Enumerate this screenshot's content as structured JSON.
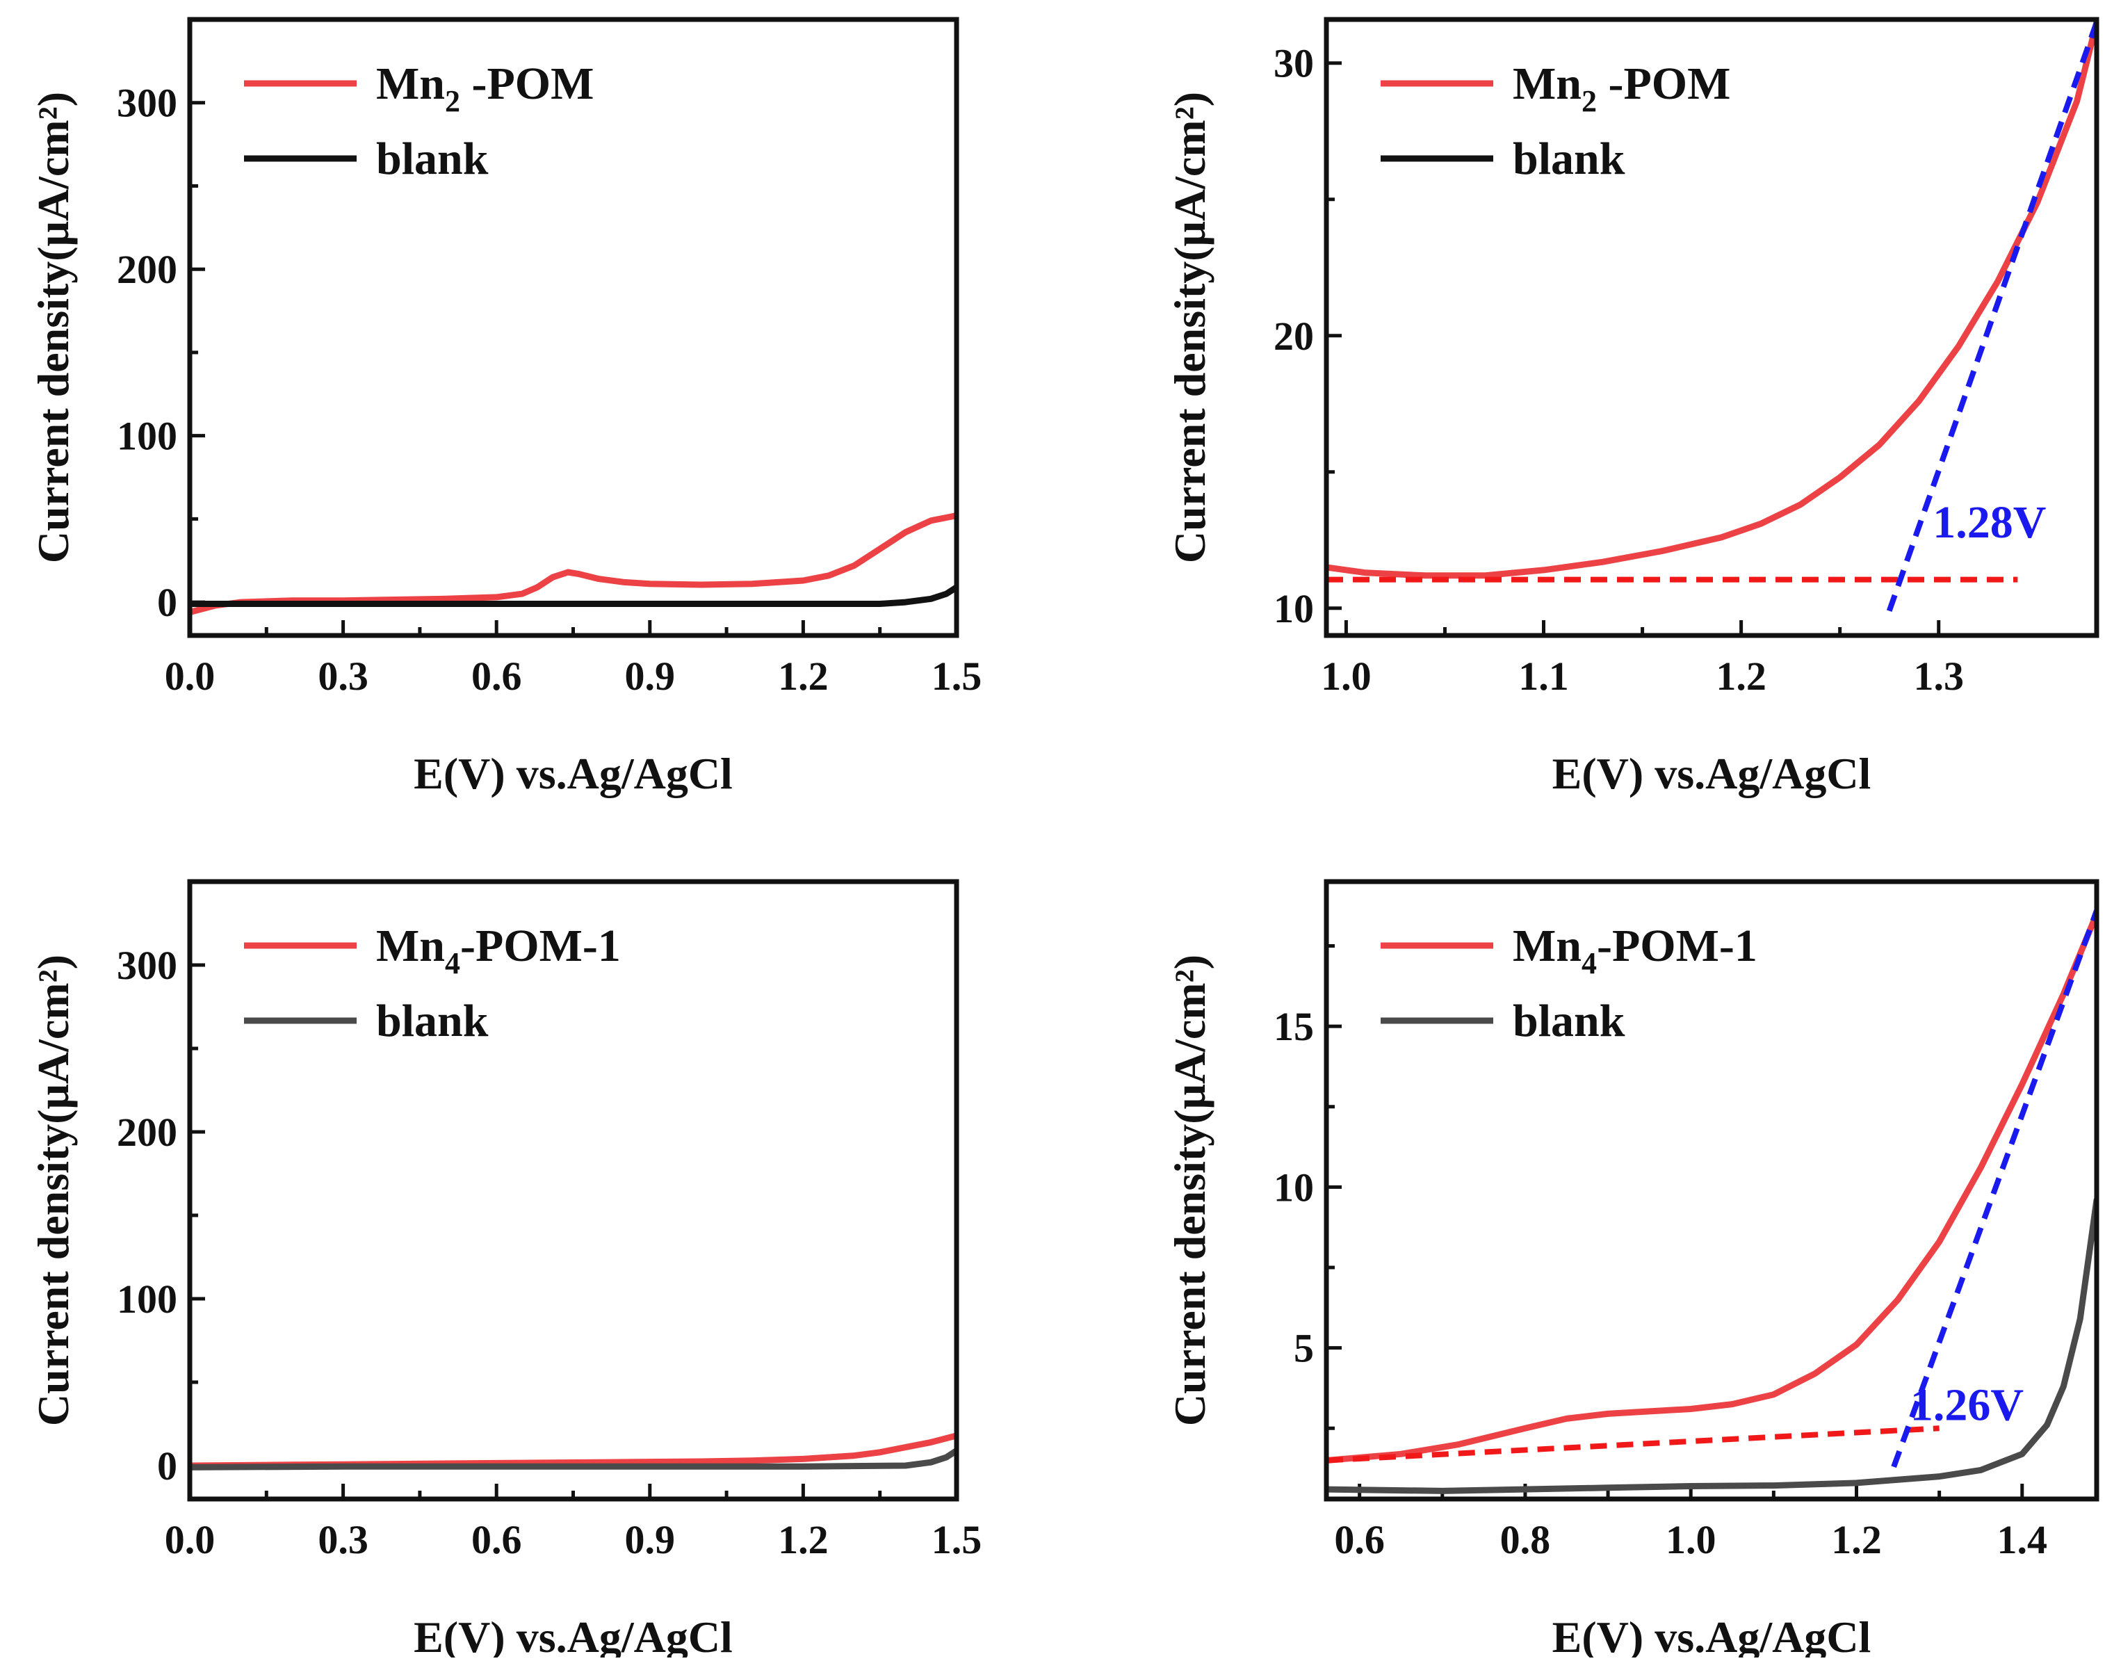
{
  "colors": {
    "red": "#ed4245",
    "black": "#111111",
    "gray": "#4a4a4a",
    "dash_red": "#f01818",
    "dash_blue": "#1a1aee"
  },
  "chart_data": [
    {
      "id": "a",
      "type": "line",
      "xlabel": "E(V) vs.Ag/AgCl",
      "ylabel": "Current density(μA/cm²)",
      "xlim": [
        0.0,
        1.5
      ],
      "ylim": [
        -20,
        350
      ],
      "xticks": [
        0.0,
        0.3,
        0.6,
        0.9,
        1.2,
        1.5
      ],
      "xtick_labels": [
        "0.0",
        "0.3",
        "0.6",
        "0.9",
        "1.2",
        "1.5"
      ],
      "yticks": [
        0,
        100,
        200,
        300
      ],
      "ytick_labels": [
        "0",
        "100",
        "200",
        "300"
      ],
      "legend": {
        "position": "top-left",
        "entries": [
          {
            "main": "Mn",
            "sub": "2",
            "rest": " -POM",
            "color": "red"
          },
          {
            "main": "blank",
            "sub": "",
            "rest": "",
            "color": "black"
          }
        ]
      },
      "series": [
        {
          "name": "Mn2 -POM",
          "color": "red",
          "x": [
            0,
            0.05,
            0.1,
            0.2,
            0.3,
            0.4,
            0.5,
            0.6,
            0.65,
            0.68,
            0.71,
            0.74,
            0.76,
            0.8,
            0.85,
            0.9,
            1.0,
            1.1,
            1.2,
            1.25,
            1.3,
            1.35,
            1.4,
            1.45,
            1.5
          ],
          "y": [
            -6,
            -2,
            0,
            1,
            1,
            1.5,
            2,
            3,
            5,
            9,
            15,
            18,
            17,
            14,
            12,
            11,
            10.5,
            11,
            13,
            16,
            22,
            32,
            42,
            49,
            52
          ]
        },
        {
          "name": "blank",
          "color": "black",
          "x": [
            0,
            0.1,
            0.3,
            0.6,
            0.9,
            1.2,
            1.35,
            1.4,
            1.45,
            1.48,
            1.5
          ],
          "y": [
            -1,
            -1,
            -1,
            -1,
            -1,
            -1,
            -1,
            0,
            2,
            5,
            9
          ]
        }
      ],
      "guides": []
    },
    {
      "id": "b",
      "type": "line",
      "xlabel": "E(V) vs.Ag/AgCl",
      "ylabel": "Current density(μA/cm²)",
      "xlim": [
        0.99,
        1.38
      ],
      "ylim": [
        9,
        31.6
      ],
      "xticks": [
        1.0,
        1.1,
        1.2,
        1.3
      ],
      "xtick_labels": [
        "1.0",
        "1.1",
        "1.2",
        "1.3"
      ],
      "yticks": [
        10,
        20,
        30
      ],
      "ytick_labels": [
        "10",
        "20",
        "30"
      ],
      "legend": {
        "position": "top-left",
        "entries": [
          {
            "main": "Mn",
            "sub": "2",
            "rest": " -POM",
            "color": "red"
          },
          {
            "main": "blank",
            "sub": "",
            "rest": "",
            "color": "black"
          }
        ]
      },
      "series": [
        {
          "name": "Mn2 -POM",
          "color": "red",
          "x": [
            0.99,
            1.01,
            1.04,
            1.07,
            1.1,
            1.13,
            1.16,
            1.19,
            1.21,
            1.23,
            1.25,
            1.27,
            1.29,
            1.31,
            1.33,
            1.35,
            1.37,
            1.38
          ],
          "y": [
            11.5,
            11.3,
            11.2,
            11.2,
            11.4,
            11.7,
            12.1,
            12.6,
            13.1,
            13.8,
            14.8,
            16.0,
            17.6,
            19.6,
            22.0,
            24.9,
            28.6,
            31.5
          ]
        }
      ],
      "guides": [
        {
          "style": "dash_red",
          "x": [
            0.99,
            1.34
          ],
          "y": [
            11.05,
            11.05
          ]
        },
        {
          "style": "dash_blue",
          "x": [
            1.275,
            1.38
          ],
          "y": [
            9.9,
            31.5
          ]
        }
      ],
      "annotation": {
        "text": "1.28V",
        "x": 1.297,
        "y": 12.6,
        "color": "dash_blue"
      }
    },
    {
      "id": "c",
      "type": "line",
      "xlabel": "E(V) vs.Ag/AgCl",
      "ylabel": "Current density(μA/cm²)",
      "xlim": [
        0.0,
        1.5
      ],
      "ylim": [
        -20,
        350
      ],
      "xticks": [
        0.0,
        0.3,
        0.6,
        0.9,
        1.2,
        1.5
      ],
      "xtick_labels": [
        "0.0",
        "0.3",
        "0.6",
        "0.9",
        "1.2",
        "1.5"
      ],
      "yticks": [
        0,
        100,
        200,
        300
      ],
      "ytick_labels": [
        "0",
        "100",
        "200",
        "300"
      ],
      "legend": {
        "position": "top-left",
        "entries": [
          {
            "main": "Mn",
            "sub": "4",
            "rest": "-POM-1",
            "color": "red"
          },
          {
            "main": "blank",
            "sub": "",
            "rest": "",
            "color": "gray"
          }
        ]
      },
      "series": [
        {
          "name": "Mn4-POM-1",
          "color": "red",
          "x": [
            0,
            0.2,
            0.4,
            0.6,
            0.8,
            1.0,
            1.1,
            1.2,
            1.3,
            1.35,
            1.4,
            1.45,
            1.5
          ],
          "y": [
            0,
            0.5,
            1,
            1.5,
            2,
            2.5,
            3,
            4,
            6,
            8,
            11,
            14,
            18
          ]
        },
        {
          "name": "blank",
          "color": "gray",
          "x": [
            0,
            0.3,
            0.6,
            0.9,
            1.2,
            1.4,
            1.45,
            1.48,
            1.5
          ],
          "y": [
            -1,
            -0.5,
            -0.5,
            -0.5,
            -0.5,
            0,
            2,
            5,
            9
          ]
        }
      ],
      "guides": []
    },
    {
      "id": "d",
      "type": "line",
      "xlabel": "E(V) vs.Ag/AgCl",
      "ylabel": "Current density(μA/cm²)",
      "xlim": [
        0.56,
        1.49
      ],
      "ylim": [
        0.3,
        19.5
      ],
      "xticks": [
        0.6,
        0.8,
        1.0,
        1.2,
        1.4
      ],
      "xtick_labels": [
        "0.6",
        "0.8",
        "1.0",
        "1.2",
        "1.4"
      ],
      "yticks": [
        5,
        10,
        15
      ],
      "ytick_labels": [
        "5",
        "10",
        "15"
      ],
      "legend": {
        "position": "top-left",
        "entries": [
          {
            "main": "Mn",
            "sub": "4",
            "rest": "-POM-1",
            "color": "red"
          },
          {
            "main": "blank",
            "sub": "",
            "rest": "",
            "color": "gray"
          }
        ]
      },
      "series": [
        {
          "name": "Mn4-POM-1",
          "color": "red",
          "x": [
            0.56,
            0.65,
            0.72,
            0.8,
            0.85,
            0.9,
            1.0,
            1.05,
            1.1,
            1.15,
            1.2,
            1.25,
            1.3,
            1.35,
            1.4,
            1.45,
            1.49
          ],
          "y": [
            1.5,
            1.7,
            2.0,
            2.5,
            2.8,
            2.95,
            3.1,
            3.25,
            3.55,
            4.2,
            5.1,
            6.5,
            8.3,
            10.6,
            13.2,
            16.0,
            18.5
          ]
        },
        {
          "name": "blank",
          "color": "gray",
          "x": [
            0.56,
            0.7,
            0.9,
            1.0,
            1.1,
            1.2,
            1.3,
            1.35,
            1.4,
            1.43,
            1.45,
            1.47,
            1.49
          ],
          "y": [
            0.6,
            0.55,
            0.65,
            0.7,
            0.72,
            0.8,
            1.0,
            1.2,
            1.7,
            2.6,
            3.8,
            5.9,
            9.6
          ]
        }
      ],
      "guides": [
        {
          "style": "dash_red",
          "x": [
            0.56,
            1.3
          ],
          "y": [
            1.5,
            2.5
          ]
        },
        {
          "style": "dash_blue",
          "x": [
            1.245,
            1.49
          ],
          "y": [
            1.3,
            18.6
          ]
        }
      ],
      "annotation": {
        "text": "1.26V",
        "x": 1.265,
        "y": 2.75,
        "color": "dash_blue"
      }
    }
  ]
}
